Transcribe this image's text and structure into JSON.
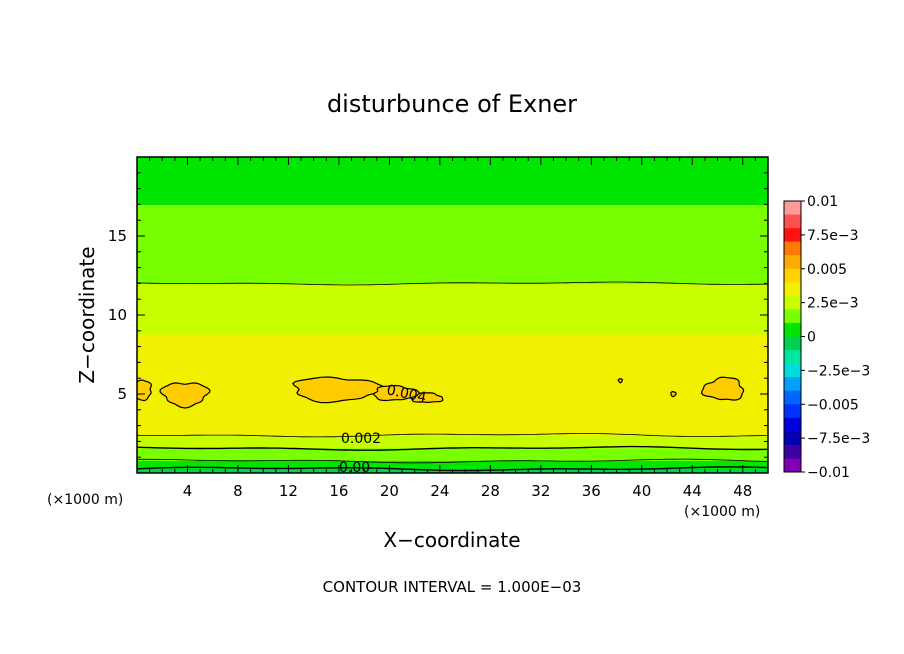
{
  "chart_data": {
    "type": "heatmap",
    "title": "disturbunce of Exner",
    "xlabel": "X−coordinate",
    "ylabel": "Z−coordinate",
    "x_unit": "(×1000 m)",
    "y_unit": "(×1000 m)",
    "xlim": [
      0,
      50
    ],
    "ylim": [
      0,
      20
    ],
    "x_ticks": [
      "4",
      "8",
      "12",
      "16",
      "20",
      "24",
      "28",
      "32",
      "36",
      "40",
      "44",
      "48"
    ],
    "y_ticks": [
      "5",
      "10",
      "15"
    ],
    "contour_interval_text": "CONTOUR INTERVAL = 1.000E−03",
    "colorbar": {
      "labels": [
        "0.01",
        "7.5e−3",
        "0.005",
        "2.5e−3",
        "0",
        "−2.5e−3",
        "−0.005",
        "−7.5e−3",
        "−0.01"
      ],
      "colors": [
        "#ff9a9a",
        "#ff5050",
        "#ff1414",
        "#ff7a00",
        "#ffaa00",
        "#ffd200",
        "#f0f000",
        "#c8ff00",
        "#78ff00",
        "#00e600",
        "#00d250",
        "#00e6a0",
        "#00dcdc",
        "#00a0ff",
        "#0064ff",
        "#0032ff",
        "#0000dc",
        "#0000b4",
        "#3c00a0",
        "#8200b4"
      ]
    },
    "contour_labels": [
      "0.004",
      "0.002",
      "0.00"
    ],
    "profile": {
      "z_km": [
        0.0,
        0.3,
        0.6,
        1.0,
        1.4,
        1.8,
        2.2,
        2.6,
        3.0,
        3.6,
        4.5,
        5.0,
        6.0,
        7.0,
        8.0,
        9.0,
        10.0,
        11.0,
        12.0,
        13.0,
        14.0,
        15.0,
        16.0,
        17.0,
        18.0,
        19.0,
        20.0
      ],
      "value": [
        -0.0008,
        0.0001,
        0.0008,
        0.0013,
        0.0018,
        0.0023,
        0.0028,
        0.0032,
        0.0035,
        0.0038,
        0.0039,
        0.0039,
        0.0038,
        0.0036,
        0.0033,
        0.0029,
        0.0025,
        0.0022,
        0.002,
        0.0018,
        0.0016,
        0.0014,
        0.0012,
        0.001,
        0.0008,
        0.0007,
        0.0006
      ]
    },
    "anomalies": [
      {
        "x": 3.8,
        "z": 5.0,
        "rx": 1.8,
        "rz": 0.75
      },
      {
        "x": 15.8,
        "z": 5.3,
        "rx": 3.5,
        "rz": 0.75
      },
      {
        "x": 20.5,
        "z": 5.05,
        "rx": 1.8,
        "rz": 0.45
      },
      {
        "x": 23.0,
        "z": 4.75,
        "rx": 1.2,
        "rz": 0.3
      },
      {
        "x": 46.5,
        "z": 5.3,
        "rx": 1.6,
        "rz": 0.7
      },
      {
        "x": 0.2,
        "z": 5.25,
        "rx": 1.0,
        "rz": 0.6
      },
      {
        "x": 38.3,
        "z": 5.85,
        "rx": 0.15,
        "rz": 0.12
      },
      {
        "x": 42.5,
        "z": 5.0,
        "rx": 0.2,
        "rz": 0.15
      }
    ]
  }
}
